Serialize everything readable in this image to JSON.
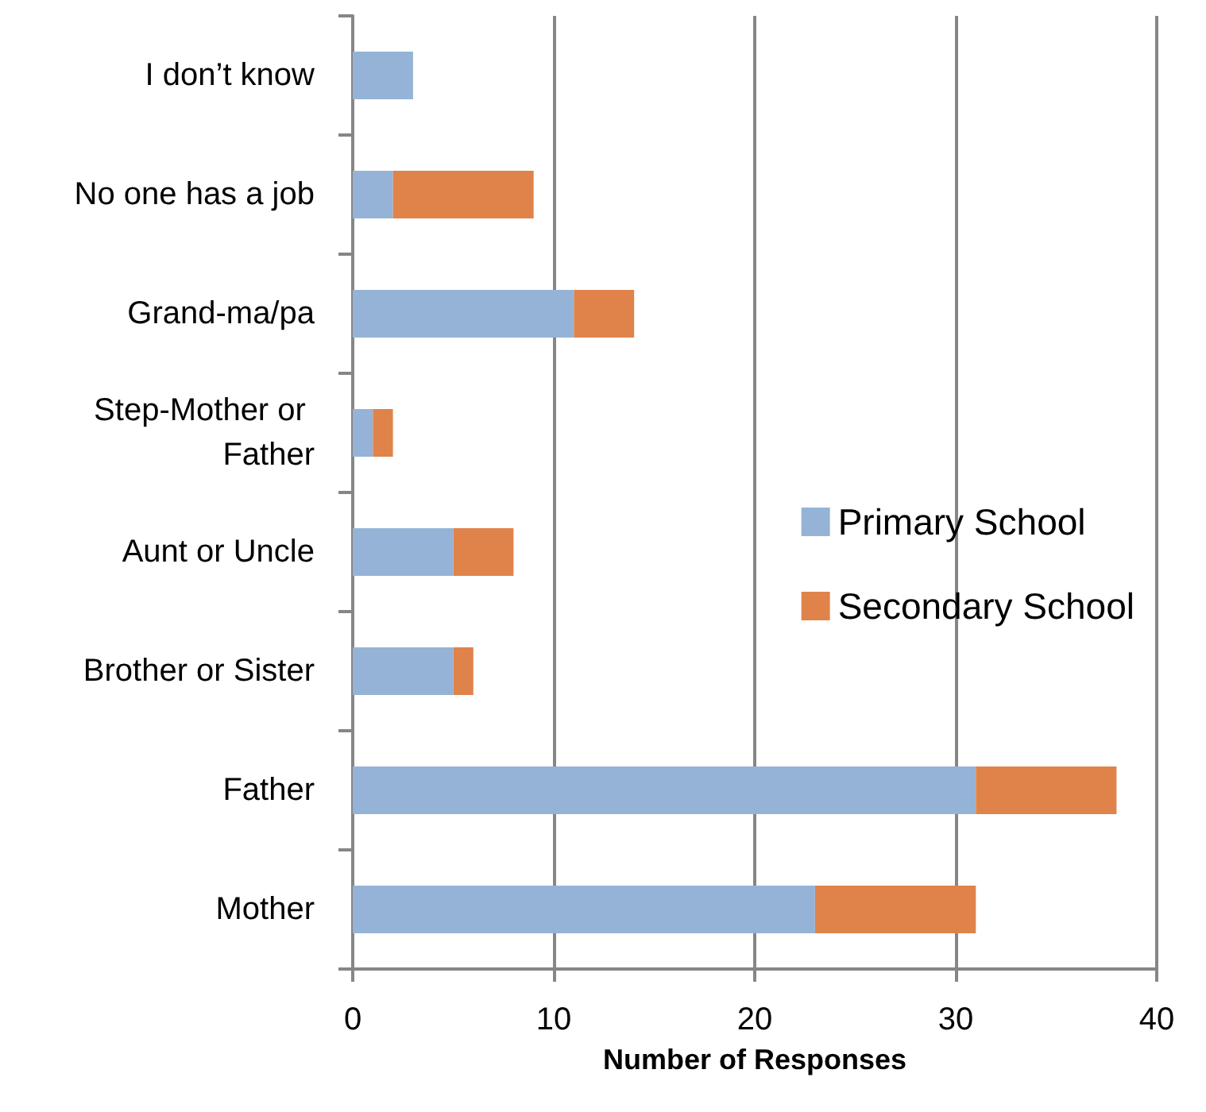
{
  "chart_data": {
    "type": "bar",
    "orientation": "horizontal",
    "stacked": true,
    "categories": [
      "I don’t know",
      "No one has a job",
      "Grand-ma/pa",
      "Step-Mother or Father",
      "Aunt or Uncle",
      "Brother or Sister",
      "Father",
      "Mother"
    ],
    "series": [
      {
        "name": "Primary School",
        "color": "#95b3d7",
        "values": [
          3,
          2,
          11,
          1,
          5,
          5,
          31,
          23
        ]
      },
      {
        "name": "Secondary School",
        "color": "#e0834a",
        "values": [
          null,
          7,
          3,
          1,
          3,
          1,
          7,
          8
        ]
      }
    ],
    "xlabel": "Number of Responses",
    "xlim": [
      0,
      40
    ],
    "xticks": [
      0,
      10,
      20,
      30,
      40
    ],
    "grid": "x",
    "legend": "right"
  }
}
